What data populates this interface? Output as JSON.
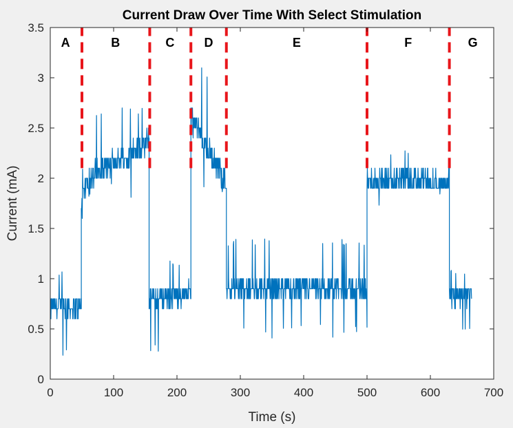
{
  "chart_data": {
    "type": "line",
    "title": "Current Draw Over Time With Select Stimulation",
    "xlabel": "Time (s)",
    "ylabel": "Current (mA)",
    "xlim": [
      0,
      700
    ],
    "ylim": [
      0,
      3.5
    ],
    "xticks": [
      0,
      100,
      200,
      300,
      400,
      500,
      600,
      700
    ],
    "yticks": [
      0,
      0.5,
      1,
      1.5,
      2,
      2.5,
      3,
      3.5
    ],
    "xtick_labels": [
      "0",
      "100",
      "200",
      "300",
      "400",
      "500",
      "600",
      "700"
    ],
    "ytick_labels": [
      "0",
      "0.5",
      "1",
      "1.5",
      "2",
      "2.5",
      "3",
      "3.5"
    ],
    "grid": false,
    "line_color": "#0072bd",
    "divider_color": "#e8161b",
    "series": [
      {
        "segments": [
          {
            "x_start": 0,
            "x_end": 49,
            "level": 0.72,
            "noise": 0.11,
            "min": 0.2,
            "max": 1.1
          },
          {
            "x_start": 49,
            "x_end": 60,
            "level_start": 1.7,
            "level_end": 2.0,
            "noise": 0.13,
            "min": 0.2,
            "max": 2.1
          },
          {
            "x_start": 60,
            "x_end": 156,
            "level_start": 2.0,
            "level_end": 2.36,
            "noise": 0.12,
            "min": 1.8,
            "max": 2.7
          },
          {
            "x_start": 156,
            "x_end": 222,
            "level_start": 0.8,
            "level_end": 0.86,
            "noise": 0.1,
            "min": 0.2,
            "max": 1.2
          },
          {
            "x_start": 222,
            "x_end": 278,
            "level_start": 2.6,
            "level_end": 1.95,
            "noise": 0.12,
            "min": 1.8,
            "max": 3.1
          },
          {
            "x_start": 278,
            "x_end": 500,
            "level": 0.9,
            "noise": 0.1,
            "min": 0.4,
            "max": 1.4
          },
          {
            "x_start": 500,
            "x_end": 630,
            "level": 1.97,
            "noise": 0.11,
            "min": 1.7,
            "max": 2.3
          },
          {
            "x_start": 630,
            "x_end": 665,
            "level": 0.83,
            "noise": 0.1,
            "min": 0.4,
            "max": 1.1
          }
        ]
      }
    ],
    "dividers": [
      50,
      157,
      222,
      278,
      500,
      630
    ],
    "divider_range": [
      2.1,
      3.5
    ],
    "regions": [
      {
        "label": "A",
        "x": 24
      },
      {
        "label": "B",
        "x": 103
      },
      {
        "label": "C",
        "x": 189
      },
      {
        "label": "D",
        "x": 250
      },
      {
        "label": "E",
        "x": 389
      },
      {
        "label": "F",
        "x": 565
      },
      {
        "label": "G",
        "x": 667
      }
    ],
    "regions_y": 3.34
  }
}
